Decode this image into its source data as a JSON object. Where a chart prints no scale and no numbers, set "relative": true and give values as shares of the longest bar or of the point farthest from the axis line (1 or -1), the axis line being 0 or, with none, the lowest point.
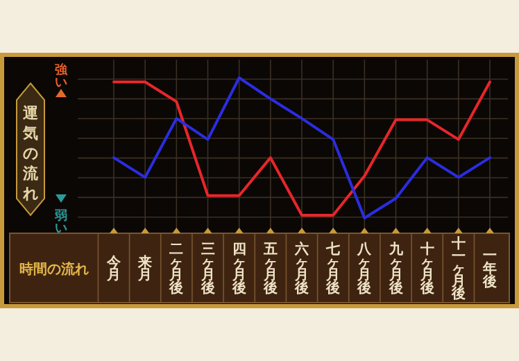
{
  "chart_data": {
    "type": "line",
    "relative": true,
    "ylabel": "運気の流れ",
    "xlabel": "時間の流れ",
    "annotations": [
      "強い",
      "弱い"
    ],
    "grid": true,
    "legend": false,
    "marker": "none",
    "line_style": "solid",
    "categories": [
      "今月",
      "来月",
      "二ヶ月後",
      "三ヶ月後",
      "四ヶ月後",
      "五ヶ月後",
      "六ヶ月後",
      "七ヶ月後",
      "八ヶ月後",
      "九ヶ月後",
      "十ヶ月後",
      "十一ヶ月後",
      "一年後"
    ],
    "series": [
      {
        "color": "#e8262a",
        "values": [
          0.97,
          0.97,
          0.83,
          0.16,
          0.16,
          0.43,
          0.02,
          0.02,
          0.3,
          0.7,
          0.7,
          0.56,
          0.97
        ]
      },
      {
        "color": "#2b2de0",
        "values": [
          0.43,
          0.29,
          0.71,
          0.56,
          1,
          0.85,
          0.71,
          0.56,
          0,
          0.14,
          0.43,
          0.29,
          0.43
        ]
      }
    ]
  }
}
